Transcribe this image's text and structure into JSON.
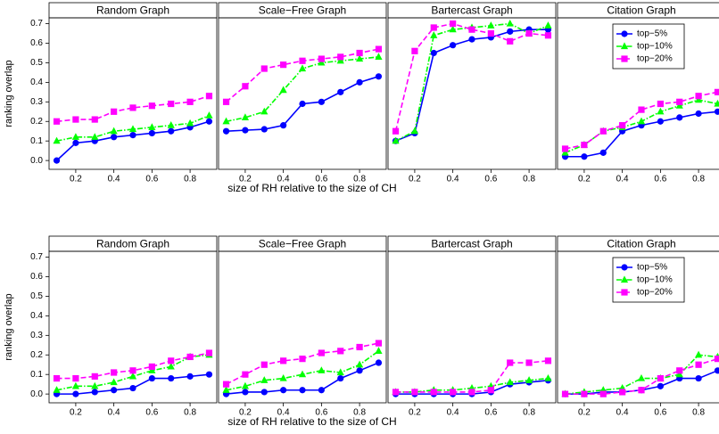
{
  "chart_data": [
    {
      "type": "line",
      "title": "Random Graph",
      "ylabel": "ranking overlap",
      "xlabel": "size of RH relative to the size of CH",
      "x": [
        0.1,
        0.2,
        0.3,
        0.4,
        0.5,
        0.6,
        0.7,
        0.8,
        0.9
      ],
      "series": [
        {
          "name": "top−5%",
          "color": "#0000ff",
          "marker": "circle",
          "linestyle": "solid",
          "values": [
            0.0,
            0.09,
            0.1,
            0.12,
            0.13,
            0.14,
            0.15,
            0.17,
            0.2
          ]
        },
        {
          "name": "top−10%",
          "color": "#00ff00",
          "marker": "triangle",
          "linestyle": "dashdot",
          "values": [
            0.1,
            0.12,
            0.12,
            0.15,
            0.16,
            0.17,
            0.18,
            0.19,
            0.23
          ]
        },
        {
          "name": "top−20%",
          "color": "#ff00ff",
          "marker": "square",
          "linestyle": "dashed",
          "values": [
            0.2,
            0.21,
            0.21,
            0.25,
            0.27,
            0.28,
            0.29,
            0.3,
            0.33
          ]
        }
      ],
      "xlim": [
        0.06,
        0.94
      ],
      "xticks": [
        0.2,
        0.4,
        0.6,
        0.8
      ],
      "ylim": [
        -0.045,
        0.73
      ],
      "yticks": [
        {
          "value": 0,
          "label": "0.0"
        },
        0.1,
        0.2,
        0.3,
        0.4,
        0.5,
        0.6,
        0.7
      ]
    },
    {
      "type": "line",
      "title": "Scale−Free Graph",
      "x": [
        0.1,
        0.2,
        0.3,
        0.4,
        0.5,
        0.6,
        0.7,
        0.8,
        0.9
      ],
      "series": [
        {
          "name": "top−5%",
          "color": "#0000ff",
          "marker": "circle",
          "linestyle": "solid",
          "values": [
            0.15,
            0.155,
            0.16,
            0.18,
            0.29,
            0.3,
            0.35,
            0.4,
            0.43
          ]
        },
        {
          "name": "top−10%",
          "color": "#00ff00",
          "marker": "triangle",
          "linestyle": "dashdot",
          "values": [
            0.2,
            0.22,
            0.25,
            0.36,
            0.47,
            0.5,
            0.51,
            0.52,
            0.53
          ]
        },
        {
          "name": "top−20%",
          "color": "#ff00ff",
          "marker": "square",
          "linestyle": "dashed",
          "values": [
            0.3,
            0.38,
            0.47,
            0.49,
            0.51,
            0.52,
            0.53,
            0.55,
            0.57
          ]
        }
      ],
      "xlim": [
        0.06,
        0.94
      ],
      "xticks": [
        0.2,
        0.4,
        0.6,
        0.8
      ],
      "ylim": [
        -0.045,
        0.73
      ]
    },
    {
      "type": "line",
      "title": "Bartercast Graph",
      "x": [
        0.1,
        0.2,
        0.3,
        0.4,
        0.5,
        0.6,
        0.7,
        0.8,
        0.9
      ],
      "series": [
        {
          "name": "top−5%",
          "color": "#0000ff",
          "marker": "circle",
          "linestyle": "solid",
          "values": [
            0.1,
            0.14,
            0.55,
            0.59,
            0.62,
            0.63,
            0.66,
            0.67,
            0.67
          ]
        },
        {
          "name": "top−10%",
          "color": "#00ff00",
          "marker": "triangle",
          "linestyle": "dashdot",
          "values": [
            0.1,
            0.15,
            0.64,
            0.67,
            0.68,
            0.69,
            0.7,
            0.65,
            0.69
          ]
        },
        {
          "name": "top−20%",
          "color": "#ff00ff",
          "marker": "square",
          "linestyle": "dashed",
          "values": [
            0.15,
            0.56,
            0.68,
            0.7,
            0.67,
            0.65,
            0.61,
            0.65,
            0.64
          ]
        }
      ],
      "xlim": [
        0.06,
        0.94
      ],
      "xticks": [
        0.2,
        0.4,
        0.6,
        0.8
      ],
      "ylim": [
        -0.045,
        0.73
      ]
    },
    {
      "type": "line",
      "title": "Citation Graph",
      "legend": "upper center",
      "x": [
        0.1,
        0.2,
        0.3,
        0.4,
        0.5,
        0.6,
        0.7,
        0.8,
        0.9
      ],
      "series": [
        {
          "name": "top−5%",
          "color": "#0000ff",
          "marker": "circle",
          "linestyle": "solid",
          "values": [
            0.02,
            0.02,
            0.04,
            0.15,
            0.18,
            0.2,
            0.22,
            0.24,
            0.25
          ]
        },
        {
          "name": "top−10%",
          "color": "#00ff00",
          "marker": "triangle",
          "linestyle": "dashdot",
          "values": [
            0.04,
            0.08,
            0.15,
            0.17,
            0.2,
            0.25,
            0.28,
            0.31,
            0.29
          ]
        },
        {
          "name": "top−20%",
          "color": "#ff00ff",
          "marker": "square",
          "linestyle": "dashed",
          "values": [
            0.06,
            0.08,
            0.15,
            0.18,
            0.26,
            0.29,
            0.3,
            0.33,
            0.35
          ]
        }
      ],
      "xlim": [
        0.06,
        0.94
      ],
      "xticks": [
        0.2,
        0.4,
        0.6,
        0.8
      ],
      "ylim": [
        -0.045,
        0.73
      ]
    },
    {
      "type": "line",
      "title": "Random Graph",
      "ylabel": "ranking overlap",
      "xlabel": "size of RH relative to the size of CH",
      "x": [
        0.1,
        0.2,
        0.3,
        0.4,
        0.5,
        0.6,
        0.7,
        0.8,
        0.9
      ],
      "series": [
        {
          "name": "top−5%",
          "color": "#0000ff",
          "marker": "circle",
          "linestyle": "solid",
          "values": [
            0.0,
            0.0,
            0.01,
            0.02,
            0.03,
            0.08,
            0.08,
            0.09,
            0.1
          ]
        },
        {
          "name": "top−10%",
          "color": "#00ff00",
          "marker": "triangle",
          "linestyle": "dashdot",
          "values": [
            0.02,
            0.04,
            0.04,
            0.06,
            0.09,
            0.12,
            0.14,
            0.19,
            0.2
          ]
        },
        {
          "name": "top−20%",
          "color": "#ff00ff",
          "marker": "square",
          "linestyle": "dashed",
          "values": [
            0.08,
            0.08,
            0.09,
            0.11,
            0.12,
            0.14,
            0.17,
            0.19,
            0.21
          ]
        }
      ],
      "xlim": [
        0.06,
        0.94
      ],
      "xticks": [
        0.2,
        0.4,
        0.6,
        0.8
      ],
      "ylim": [
        -0.045,
        0.73
      ],
      "yticks": [
        {
          "value": 0,
          "label": "0.0"
        },
        0.1,
        0.2,
        0.3,
        0.4,
        0.5,
        0.6,
        0.7
      ]
    },
    {
      "type": "line",
      "title": "Scale−Free Graph",
      "x": [
        0.1,
        0.2,
        0.3,
        0.4,
        0.5,
        0.6,
        0.7,
        0.8,
        0.9
      ],
      "series": [
        {
          "name": "top−5%",
          "color": "#0000ff",
          "marker": "circle",
          "linestyle": "solid",
          "values": [
            0.0,
            0.01,
            0.01,
            0.02,
            0.02,
            0.02,
            0.08,
            0.12,
            0.16
          ]
        },
        {
          "name": "top−10%",
          "color": "#00ff00",
          "marker": "triangle",
          "linestyle": "dashdot",
          "values": [
            0.02,
            0.04,
            0.07,
            0.08,
            0.1,
            0.12,
            0.11,
            0.15,
            0.22
          ]
        },
        {
          "name": "top−20%",
          "color": "#ff00ff",
          "marker": "square",
          "linestyle": "dashed",
          "values": [
            0.05,
            0.1,
            0.15,
            0.17,
            0.18,
            0.21,
            0.22,
            0.24,
            0.26
          ]
        }
      ],
      "xlim": [
        0.06,
        0.94
      ],
      "xticks": [
        0.2,
        0.4,
        0.6,
        0.8
      ],
      "ylim": [
        -0.045,
        0.73
      ]
    },
    {
      "type": "line",
      "title": "Bartercast Graph",
      "x": [
        0.1,
        0.2,
        0.3,
        0.4,
        0.5,
        0.6,
        0.7,
        0.8,
        0.9
      ],
      "series": [
        {
          "name": "top−5%",
          "color": "#0000ff",
          "marker": "circle",
          "linestyle": "solid",
          "values": [
            0.0,
            0.0,
            0.0,
            0.0,
            0.0,
            0.01,
            0.05,
            0.06,
            0.07
          ]
        },
        {
          "name": "top−10%",
          "color": "#00ff00",
          "marker": "triangle",
          "linestyle": "dashdot",
          "values": [
            0.01,
            0.01,
            0.02,
            0.02,
            0.03,
            0.04,
            0.06,
            0.07,
            0.08
          ]
        },
        {
          "name": "top−20%",
          "color": "#ff00ff",
          "marker": "square",
          "linestyle": "dashed",
          "values": [
            0.01,
            0.01,
            0.01,
            0.01,
            0.01,
            0.02,
            0.16,
            0.16,
            0.17
          ]
        }
      ],
      "xlim": [
        0.06,
        0.94
      ],
      "xticks": [
        0.2,
        0.4,
        0.6,
        0.8
      ],
      "ylim": [
        -0.045,
        0.73
      ]
    },
    {
      "type": "line",
      "title": "Citation Graph",
      "legend": "upper center",
      "x": [
        0.1,
        0.2,
        0.3,
        0.4,
        0.5,
        0.6,
        0.7,
        0.8,
        0.9
      ],
      "series": [
        {
          "name": "top−5%",
          "color": "#0000ff",
          "marker": "circle",
          "linestyle": "solid",
          "values": [
            0.0,
            0.0,
            0.01,
            0.01,
            0.02,
            0.04,
            0.08,
            0.08,
            0.12
          ]
        },
        {
          "name": "top−10%",
          "color": "#00ff00",
          "marker": "triangle",
          "linestyle": "dashdot",
          "values": [
            0.0,
            0.01,
            0.02,
            0.03,
            0.08,
            0.08,
            0.1,
            0.2,
            0.19
          ]
        },
        {
          "name": "top−20%",
          "color": "#ff00ff",
          "marker": "square",
          "linestyle": "dashed",
          "values": [
            0.0,
            0.0,
            0.0,
            0.01,
            0.02,
            0.08,
            0.12,
            0.15,
            0.18
          ]
        }
      ],
      "xlim": [
        0.06,
        0.94
      ],
      "xticks": [
        0.2,
        0.4,
        0.6,
        0.8
      ],
      "ylim": [
        -0.045,
        0.73
      ]
    }
  ]
}
